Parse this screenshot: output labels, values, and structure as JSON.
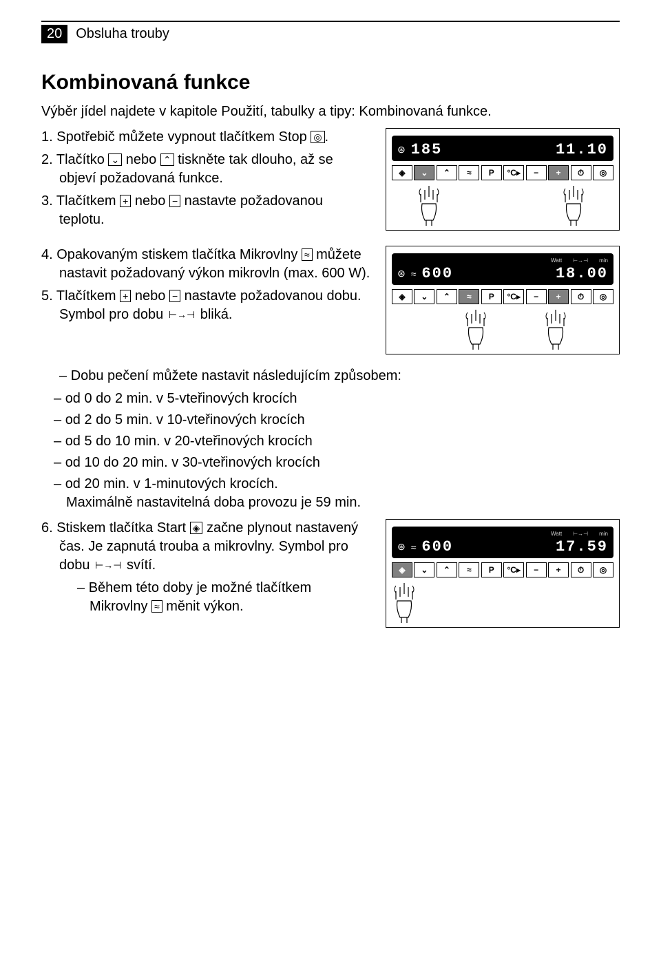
{
  "page": {
    "number": "20",
    "section": "Obsluha trouby"
  },
  "title": "Kombinovaná funkce",
  "intro": "Výběr jídel najdete v kapitole Použití, tabulky a tipy: Kombinovaná funkce.",
  "steps": {
    "s1a": "Spotřebič můžete vypnout tlačítkem Stop ",
    "s1b": ".",
    "s2a": "Tlačítko ",
    "s2b": " nebo ",
    "s2c": " tiskněte tak dlouho, až se objeví požadovaná funkce.",
    "s3a": "Tlačítkem ",
    "s3b": " nebo ",
    "s3c": " nastavte požadovanou teplotu.",
    "s4a": "Opakovaným stiskem tlačítka Mikrovlny ",
    "s4b": " můžete nastavit požadovaný výkon mikrovln (max. 600 W).",
    "s5a": "Tlačítkem ",
    "s5b": " nebo ",
    "s5c": " nastavte požadovanou dobu. Symbol pro dobu ",
    "s5d": " bliká.",
    "s5sub_intro": "Dobu pečení můžete nastavit následujícím způsobem:",
    "s5_i1": "od 0 do 2 min. v 5-vteřinových krocích",
    "s5_i2": "od 2 do 5 min. v 10-vteřinových krocích",
    "s5_i3": "od 5 do 10 min. v 20-vteřinových krocích",
    "s5_i4": "od 10 do 20 min. v 30-vteřinových krocích",
    "s5_i5a": "od 20 min. v 1-minutových krocích.",
    "s5_i5b": "Maximálně nastavitelná doba provozu je 59 min.",
    "s6a": "Stiskem tlačítka Start ",
    "s6b": " začne plynout nastavený čas. Je zapnutá trouba a mikrovlny. Symbol pro dobu ",
    "s6c": " svítí.",
    "s6sub_a": "Během této doby je možné tlačítkem Mikrovlny ",
    "s6sub_b": " měnit výkon."
  },
  "symbols": {
    "stop": "◎",
    "down": "⌄",
    "up": "⌃",
    "plus": "+",
    "minus": "−",
    "micro": "≈",
    "duration": "⊢→⊣",
    "start": "◈"
  },
  "panel_buttons": [
    "◈",
    "⌄",
    "⌃",
    "≈",
    "P",
    "°C▸",
    "−",
    "+",
    "⏱",
    "◎"
  ],
  "fig1": {
    "left_val": "185",
    "right_val": "11.10",
    "left_icon": "⊛",
    "hands_pressing": [
      1,
      7
    ],
    "labels": {
      "l1": "",
      "l2": ""
    }
  },
  "fig2": {
    "left_val": "600",
    "right_val": "18.00",
    "left_icon": "⊛",
    "mid_icon": "≈",
    "label_left": "Watt",
    "label_right": "min",
    "dur_icon": "⊢→⊣",
    "hands_pressing": [
      3,
      7
    ]
  },
  "fig3": {
    "left_val": "600",
    "right_val": "17.59",
    "left_icon": "⊛",
    "mid_icon": "≈",
    "label_left": "Watt",
    "label_right": "min",
    "dur_icon": "⊢→⊣",
    "hands_pressing": [
      0
    ]
  },
  "colors": {
    "text": "#000000",
    "bg": "#ffffff",
    "panel_dark": "#000000",
    "grey": "#808080"
  }
}
